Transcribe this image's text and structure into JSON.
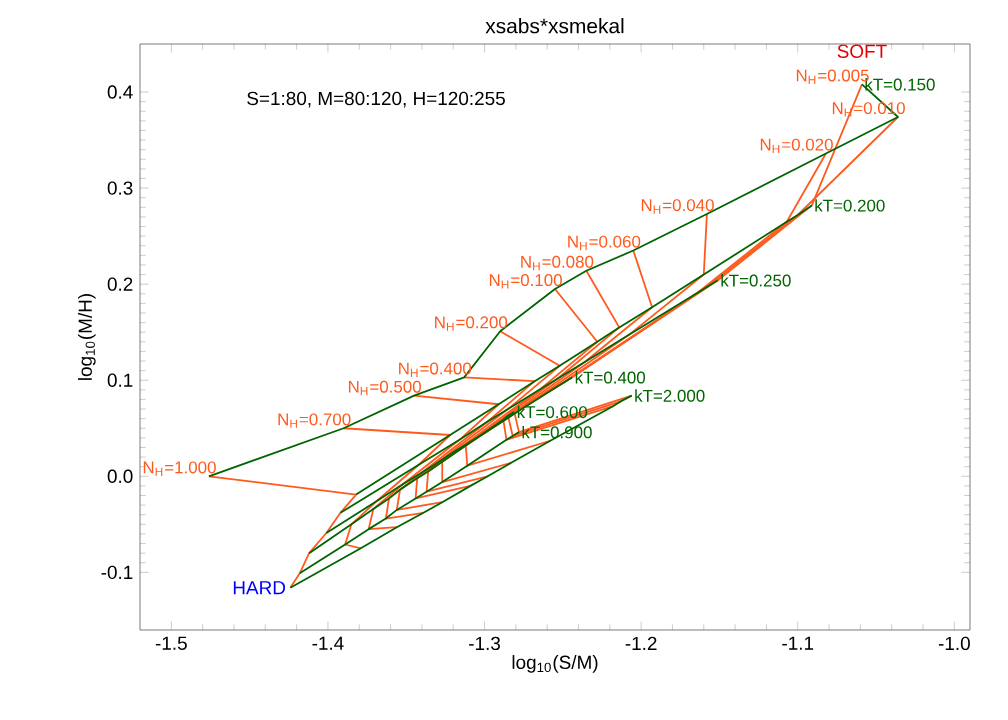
{
  "chart_data": {
    "type": "line",
    "title": "xsabs*xsmekal",
    "xlabel": "log$_{10}$(S/M)",
    "ylabel": "log$_{10}$(M/H)",
    "xlim": [
      -1.52,
      -0.99
    ],
    "ylim": [
      -0.16,
      0.45
    ],
    "xticks": [
      -1.5,
      -1.4,
      -1.3,
      -1.2,
      -1.1,
      {
        "value": -1.0,
        "label": "-1.0"
      }
    ],
    "yticks": [
      -0.1,
      {
        "value": 0,
        "label": "0.0"
      },
      0.1,
      0.2,
      0.3,
      0.4
    ],
    "annotations": [
      "S=1:80, M=80:120, H=120:255",
      {
        "text": "SOFT",
        "x": -1.059,
        "y": 0.408
      },
      {
        "text": "HARD",
        "x": -1.424,
        "y": -0.116
      }
    ],
    "series": [
      {
        "name": "kT=0.150",
        "color": "#006400",
        "x": [
          -1.059,
          -1.036,
          -1.082,
          -1.158,
          -1.205,
          -1.235,
          -1.255,
          -1.29,
          -1.313,
          -1.345,
          -1.39,
          -1.476
        ],
        "values": [
          0.408,
          0.374,
          0.336,
          0.273,
          0.235,
          0.214,
          0.195,
          0.151,
          0.103,
          0.084,
          0.05,
          0.0
        ]
      },
      {
        "name": "kT=0.200",
        "color": "#006400",
        "x": [
          -1.091,
          -1.1,
          -1.107,
          -1.16,
          -1.193,
          -1.214,
          -1.228,
          -1.252,
          -1.268,
          -1.291,
          -1.322,
          -1.382
        ],
        "values": [
          0.282,
          0.272,
          0.265,
          0.21,
          0.176,
          0.155,
          0.14,
          0.115,
          0.099,
          0.075,
          0.043,
          -0.019
        ]
      },
      {
        "name": "kT=0.250",
        "color": "#006400",
        "x": [
          -1.151,
          -1.158,
          -1.164,
          -1.208,
          -1.236,
          -1.253,
          -1.265,
          -1.285,
          -1.298,
          -1.316,
          -1.342,
          -1.392
        ],
        "values": [
          0.204,
          0.197,
          0.191,
          0.147,
          0.119,
          0.102,
          0.09,
          0.07,
          0.057,
          0.038,
          0.012,
          -0.038
        ]
      },
      {
        "name": "kT=0.400",
        "color": "#006400",
        "x": [
          -1.244,
          -1.249,
          -1.253,
          -1.281,
          -1.299,
          -1.31,
          -1.318,
          -1.331,
          -1.34,
          -1.352,
          -1.369,
          -1.401
        ],
        "values": [
          0.103,
          0.098,
          0.094,
          0.065,
          0.046,
          0.035,
          0.027,
          0.013,
          0.004,
          -0.008,
          -0.026,
          -0.059
        ]
      },
      {
        "name": "kT=0.600",
        "color": "#006400",
        "x": [
          -1.281,
          -1.285,
          -1.288,
          -1.312,
          -1.327,
          -1.336,
          -1.343,
          -1.354,
          -1.361,
          -1.371,
          -1.385,
          -1.412
        ],
        "values": [
          0.067,
          0.063,
          0.059,
          0.032,
          0.015,
          0.005,
          -0.002,
          -0.014,
          -0.023,
          -0.034,
          -0.05,
          -0.08
        ]
      },
      {
        "name": "kT=0.900",
        "color": "#006400",
        "x": [
          -1.278,
          -1.282,
          -1.286,
          -1.311,
          -1.327,
          -1.337,
          -1.344,
          -1.356,
          -1.363,
          -1.374,
          -1.389,
          -1.418
        ],
        "values": [
          0.046,
          0.042,
          0.038,
          0.011,
          -0.006,
          -0.016,
          -0.023,
          -0.035,
          -0.044,
          -0.055,
          -0.071,
          -0.101
        ]
      },
      {
        "name": "kT=2.000",
        "color": "#006400",
        "x": [
          -1.206,
          -1.213,
          -1.218,
          -1.258,
          -1.283,
          -1.298,
          -1.309,
          -1.327,
          -1.339,
          -1.356,
          -1.379,
          -1.424
        ],
        "values": [
          0.084,
          0.078,
          0.073,
          0.037,
          0.014,
          0.0,
          -0.01,
          -0.027,
          -0.038,
          -0.053,
          -0.075,
          -0.116
        ]
      },
      {
        "name": "N$_{H}$=0.005",
        "color": "#ff5a1e",
        "x": [
          -1.059,
          -1.091,
          -1.151,
          -1.244,
          -1.281,
          -1.278,
          -1.206
        ],
        "values": [
          0.408,
          0.282,
          0.204,
          0.103,
          0.067,
          0.046,
          0.084
        ]
      },
      {
        "name": "N$_{H}$=0.010",
        "color": "#ff5a1e",
        "x": [
          -1.036,
          -1.1,
          -1.158,
          -1.249,
          -1.285,
          -1.282,
          -1.213
        ],
        "values": [
          0.374,
          0.272,
          0.197,
          0.098,
          0.063,
          0.042,
          0.078
        ]
      },
      {
        "name": "N$_{H}$=0.020",
        "color": "#ff5a1e",
        "x": [
          -1.082,
          -1.107,
          -1.164,
          -1.253,
          -1.288,
          -1.286,
          -1.218
        ],
        "values": [
          0.336,
          0.265,
          0.191,
          0.094,
          0.059,
          0.038,
          0.073
        ]
      },
      {
        "name": "N$_{H}$=0.040",
        "color": "#ff5a1e",
        "x": [
          -1.158,
          -1.16,
          -1.208,
          -1.281,
          -1.312,
          -1.311,
          -1.258
        ],
        "values": [
          0.273,
          0.21,
          0.147,
          0.065,
          0.032,
          0.011,
          0.037
        ]
      },
      {
        "name": "N$_{H}$=0.060",
        "color": "#ff5a1e",
        "x": [
          -1.205,
          -1.193,
          -1.236,
          -1.299,
          -1.327,
          -1.327,
          -1.283
        ],
        "values": [
          0.235,
          0.176,
          0.119,
          0.046,
          0.015,
          -0.006,
          0.014
        ]
      },
      {
        "name": "N$_{H}$=0.080",
        "color": "#ff5a1e",
        "x": [
          -1.235,
          -1.214,
          -1.253,
          -1.31,
          -1.336,
          -1.337,
          -1.298
        ],
        "values": [
          0.214,
          0.155,
          0.102,
          0.035,
          0.005,
          -0.016,
          0.0
        ]
      },
      {
        "name": "N$_{H}$=0.100",
        "color": "#ff5a1e",
        "x": [
          -1.255,
          -1.228,
          -1.265,
          -1.318,
          -1.343,
          -1.344,
          -1.309
        ],
        "values": [
          0.195,
          0.14,
          0.09,
          0.027,
          -0.002,
          -0.023,
          -0.01
        ]
      },
      {
        "name": "N$_{H}$=0.200",
        "color": "#ff5a1e",
        "x": [
          -1.29,
          -1.252,
          -1.285,
          -1.331,
          -1.354,
          -1.356,
          -1.327
        ],
        "values": [
          0.151,
          0.115,
          0.07,
          0.013,
          -0.014,
          -0.035,
          -0.027
        ]
      },
      {
        "name": "N$_{H}$=0.400",
        "color": "#ff5a1e",
        "x": [
          -1.313,
          -1.268,
          -1.298,
          -1.34,
          -1.361,
          -1.363,
          -1.339
        ],
        "values": [
          0.103,
          0.099,
          0.057,
          0.004,
          -0.023,
          -0.044,
          -0.038
        ]
      },
      {
        "name": "N$_{H}$=0.500",
        "color": "#ff5a1e",
        "x": [
          -1.345,
          -1.291,
          -1.316,
          -1.352,
          -1.371,
          -1.374,
          -1.356
        ],
        "values": [
          0.084,
          0.075,
          0.038,
          -0.008,
          -0.034,
          -0.055,
          -0.053
        ]
      },
      {
        "name": "N$_{H}$=0.700",
        "color": "#ff5a1e",
        "x": [
          -1.39,
          -1.322,
          -1.342,
          -1.369,
          -1.385,
          -1.389,
          -1.379
        ],
        "values": [
          0.05,
          0.043,
          0.012,
          -0.026,
          -0.05,
          -0.071,
          -0.075
        ]
      },
      {
        "name": "N$_{H}$=1.000",
        "color": "#ff5a1e",
        "x": [
          -1.476,
          -1.382,
          -1.392,
          -1.401,
          -1.412,
          -1.418,
          -1.424
        ],
        "values": [
          0.0,
          -0.019,
          -0.038,
          -0.059,
          -0.08,
          -0.101,
          -0.116
        ]
      }
    ]
  }
}
